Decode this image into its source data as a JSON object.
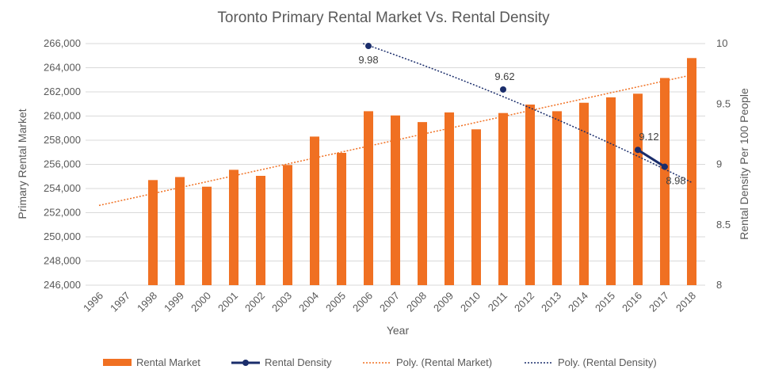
{
  "chart_data": {
    "type": "bar",
    "title": "Toronto Primary Rental Market Vs. Rental Density",
    "xlabel": "Year",
    "ylabel": "Primary Rental Market",
    "y2label": "Rental Density Per 100 People",
    "categories": [
      "1996",
      "1997",
      "1998",
      "1999",
      "2000",
      "2001",
      "2002",
      "2003",
      "2004",
      "2005",
      "2006",
      "2007",
      "2008",
      "2009",
      "2010",
      "2011",
      "2012",
      "2013",
      "2014",
      "2015",
      "2016",
      "2017",
      "2018"
    ],
    "ylim": [
      246000,
      266000
    ],
    "y_ticks": [
      246000,
      248000,
      250000,
      252000,
      254000,
      256000,
      258000,
      260000,
      262000,
      264000,
      266000
    ],
    "y_tick_labels": [
      "246,000",
      "248,000",
      "250,000",
      "252,000",
      "254,000",
      "256,000",
      "258,000",
      "260,000",
      "262,000",
      "264,000",
      "266,000"
    ],
    "y2lim": [
      8,
      10
    ],
    "y2_ticks": [
      8,
      8.5,
      9,
      9.5,
      10
    ],
    "y2_tick_labels": [
      "8",
      "8.5",
      "9",
      "9.5",
      "10"
    ],
    "grid": true,
    "legend_position": "bottom",
    "colors": {
      "rental_market": "#f07022",
      "rental_density": "#1a2d6b",
      "trend_market": "#f07022",
      "trend_density": "#1a2d6b"
    },
    "series": [
      {
        "name": "Rental Market",
        "kind": "bar",
        "axis": "left",
        "values": [
          null,
          null,
          254700,
          254950,
          254150,
          255550,
          255050,
          255950,
          258300,
          256950,
          260400,
          260050,
          259500,
          260300,
          258900,
          260250,
          260950,
          260400,
          261100,
          261550,
          261850,
          263150,
          264800
        ]
      },
      {
        "name": "Rental Density",
        "kind": "line",
        "axis": "right",
        "values": [
          null,
          null,
          null,
          null,
          null,
          null,
          null,
          null,
          null,
          null,
          9.98,
          null,
          null,
          null,
          null,
          9.62,
          null,
          null,
          null,
          null,
          9.12,
          8.98,
          null
        ],
        "labels": [
          "9.98",
          "9.62",
          "9.12",
          "8.98"
        ]
      },
      {
        "name": "Poly. (Rental Market)",
        "kind": "trendline",
        "axis": "left",
        "start": 252600,
        "end": 263400
      },
      {
        "name": "Poly. (Rental Density)",
        "kind": "trendline",
        "axis": "right",
        "start": 10.0,
        "end": 8.85
      }
    ]
  }
}
